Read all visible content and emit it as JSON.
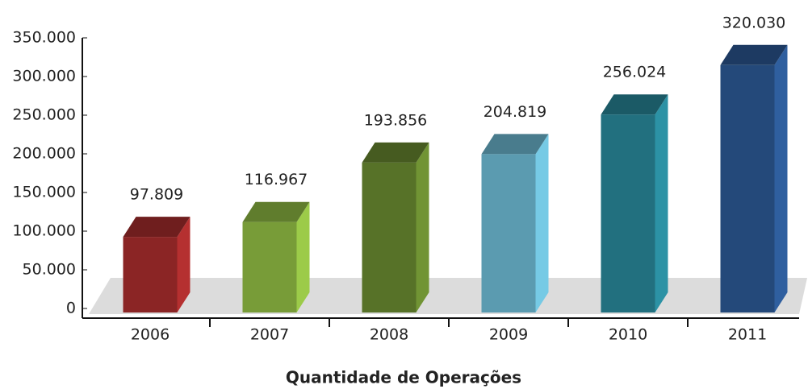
{
  "chart_data": {
    "type": "bar3d",
    "title": "Quantidade de Operações",
    "categories": [
      "2006",
      "2007",
      "2008",
      "2009",
      "2010",
      "2011"
    ],
    "values": [
      97809,
      116967,
      193856,
      204819,
      256024,
      320030
    ],
    "value_labels": [
      "97.809",
      "116.967",
      "193.856",
      "204.819",
      "256.024",
      "320.030"
    ],
    "colors": [
      "#8b2525",
      "#789c38",
      "#577228",
      "#5b9bb0",
      "#22707f",
      "#24497a"
    ],
    "ylim": [
      0,
      350000
    ],
    "yticks": [
      {
        "value": 0,
        "label": "0"
      },
      {
        "value": 50000,
        "label": "50.000"
      },
      {
        "value": 100000,
        "label": "100.000"
      },
      {
        "value": 150000,
        "label": "150.000"
      },
      {
        "value": 200000,
        "label": "200.000"
      },
      {
        "value": 250000,
        "label": "250.000"
      },
      {
        "value": 300000,
        "label": "300.000"
      },
      {
        "value": 350000,
        "label": "350.000"
      }
    ]
  }
}
